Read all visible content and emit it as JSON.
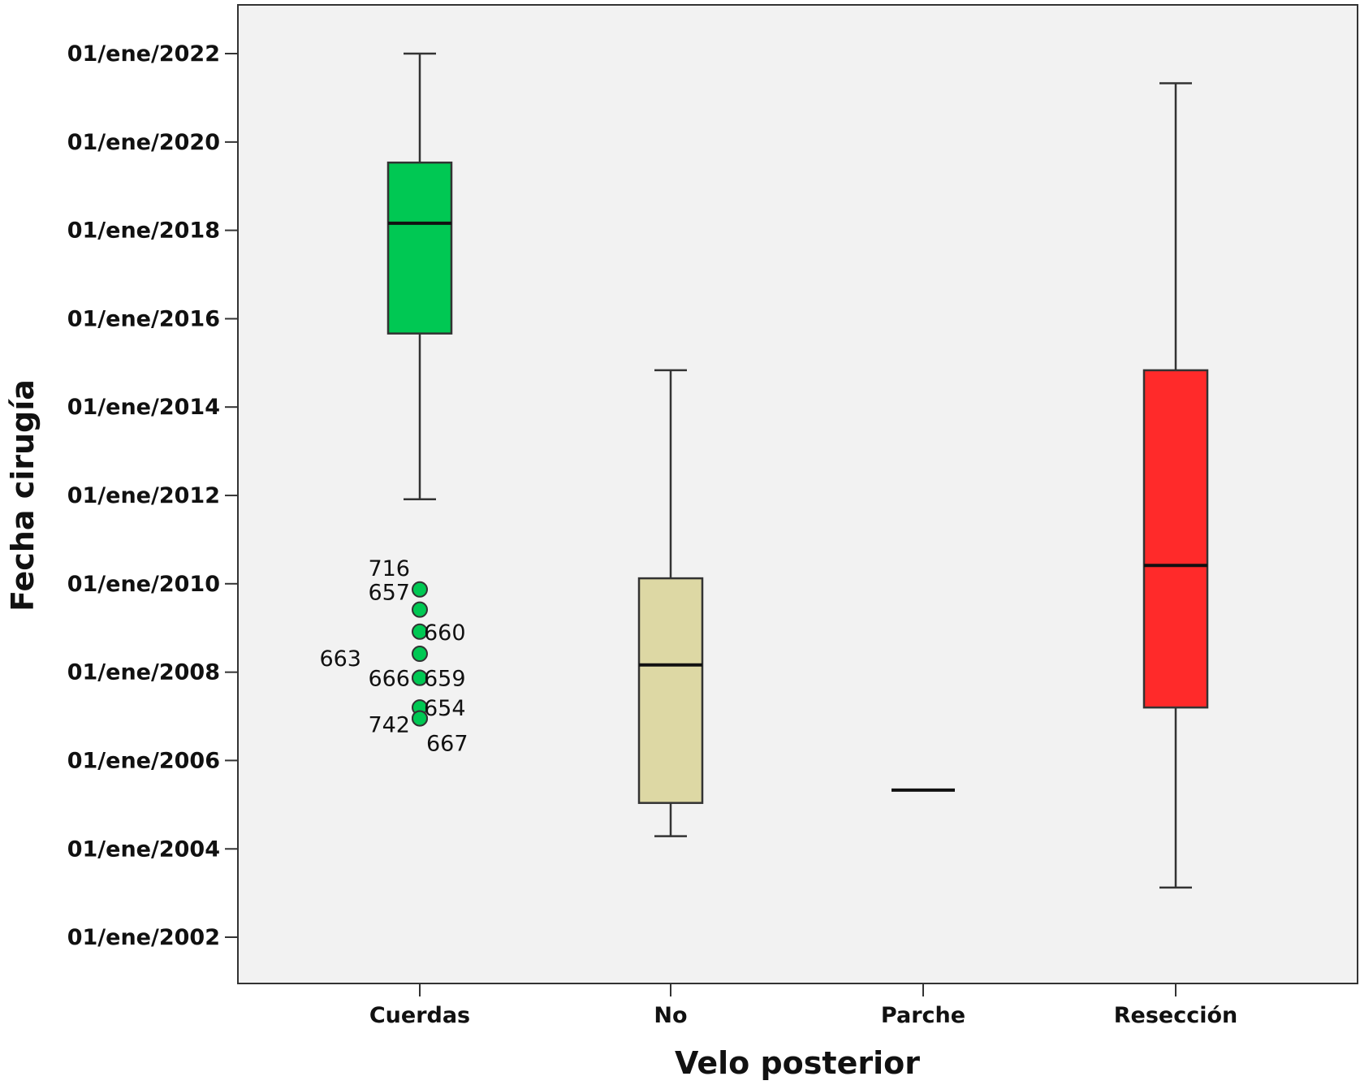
{
  "chart_data": {
    "type": "box",
    "xlabel": "Velo posterior",
    "ylabel": "Fecha cirugía",
    "y_axis": {
      "min": "2001-01-01",
      "max": "2023-01-01",
      "ticks": [
        {
          "date": "2002-01-01",
          "label": "01/ene/2002"
        },
        {
          "date": "2004-01-01",
          "label": "01/ene/2004"
        },
        {
          "date": "2006-01-01",
          "label": "01/ene/2006"
        },
        {
          "date": "2008-01-01",
          "label": "01/ene/2008"
        },
        {
          "date": "2010-01-01",
          "label": "01/ene/2010"
        },
        {
          "date": "2012-01-01",
          "label": "01/ene/2012"
        },
        {
          "date": "2014-01-01",
          "label": "01/ene/2014"
        },
        {
          "date": "2016-01-01",
          "label": "01/ene/2016"
        },
        {
          "date": "2018-01-01",
          "label": "01/ene/2018"
        },
        {
          "date": "2020-01-01",
          "label": "01/ene/2020"
        },
        {
          "date": "2022-01-01",
          "label": "01/ene/2022"
        }
      ]
    },
    "grid": false,
    "plot_background": "#f2f2f2",
    "categories": [
      "Cuerdas",
      "No",
      "Parche",
      "Resección"
    ],
    "boxes": [
      {
        "category": "Cuerdas",
        "color": "#00c853",
        "whisker_low": "2011-12-01",
        "q1": "2015-09-01",
        "median": "2018-03-01",
        "q3": "2019-07-15",
        "whisker_high": "2022-01-01",
        "outliers": [
          {
            "id": "716",
            "date": "2009-11-15",
            "label_side": "left"
          },
          {
            "id": "657",
            "date": "2009-06-01",
            "label_side": "left"
          },
          {
            "id": "660",
            "date": "2008-12-01",
            "label_side": "right"
          },
          {
            "id": "663",
            "date": "2008-06-01",
            "label_side": "left-far"
          },
          {
            "id": "666",
            "date": "2007-11-15",
            "label_side": "left"
          },
          {
            "id": "659",
            "date": "2007-11-15",
            "label_side": "right"
          },
          {
            "id": "654",
            "date": "2007-03-15",
            "label_side": "right"
          },
          {
            "id": "742",
            "date": "2006-12-15",
            "label_side": "left"
          },
          {
            "id": "667",
            "date": "2006-12-15",
            "label_side": "right-low"
          }
        ]
      },
      {
        "category": "No",
        "color": "#ddd8a4",
        "whisker_low": "2004-04-15",
        "q1": "2005-01-15",
        "median": "2008-03-01",
        "q3": "2010-02-15",
        "whisker_high": "2014-11-01",
        "outliers": []
      },
      {
        "category": "Parche",
        "color": "#000000",
        "whisker_low": "2005-05-01",
        "q1": "2005-05-01",
        "median": "2005-05-01",
        "q3": "2005-05-01",
        "whisker_high": "2005-05-01",
        "outliers": []
      },
      {
        "category": "Resección",
        "color": "#ff2a2a",
        "whisker_low": "2003-02-15",
        "q1": "2007-03-15",
        "median": "2010-06-01",
        "q3": "2014-11-01",
        "whisker_high": "2021-05-01",
        "outliers": []
      }
    ]
  }
}
